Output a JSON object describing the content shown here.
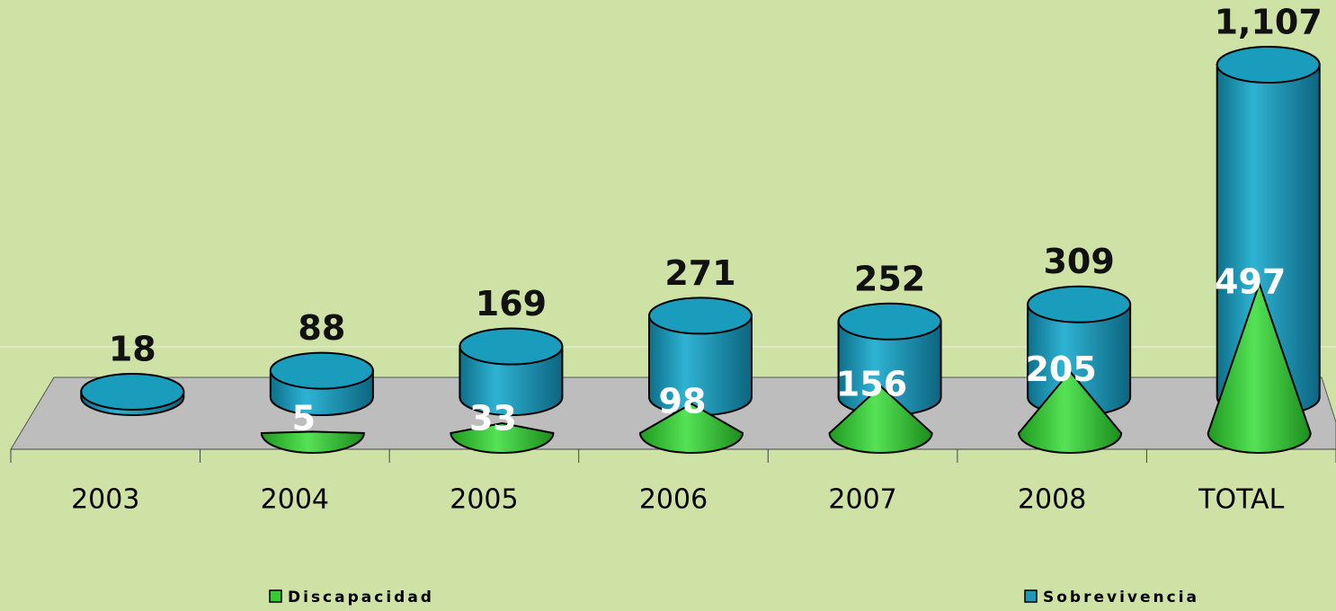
{
  "chart_data": {
    "type": "bar3d",
    "categories": [
      "2003",
      "2004",
      "2005",
      "2006",
      "2007",
      "2008",
      "TOTAL"
    ],
    "series": [
      {
        "name": "Discapacidad",
        "color": "#33cc33",
        "shape": "cone",
        "values": [
          null,
          5,
          33,
          98,
          156,
          205,
          497
        ]
      },
      {
        "name": "Sobrevivencia",
        "color": "#1a9cbc",
        "shape": "cylinder",
        "values": [
          18,
          88,
          169,
          271,
          252,
          309,
          1107
        ],
        "value_labels": [
          "18",
          "88",
          "169",
          "271",
          "252",
          "309",
          "1,107"
        ]
      }
    ]
  }
}
